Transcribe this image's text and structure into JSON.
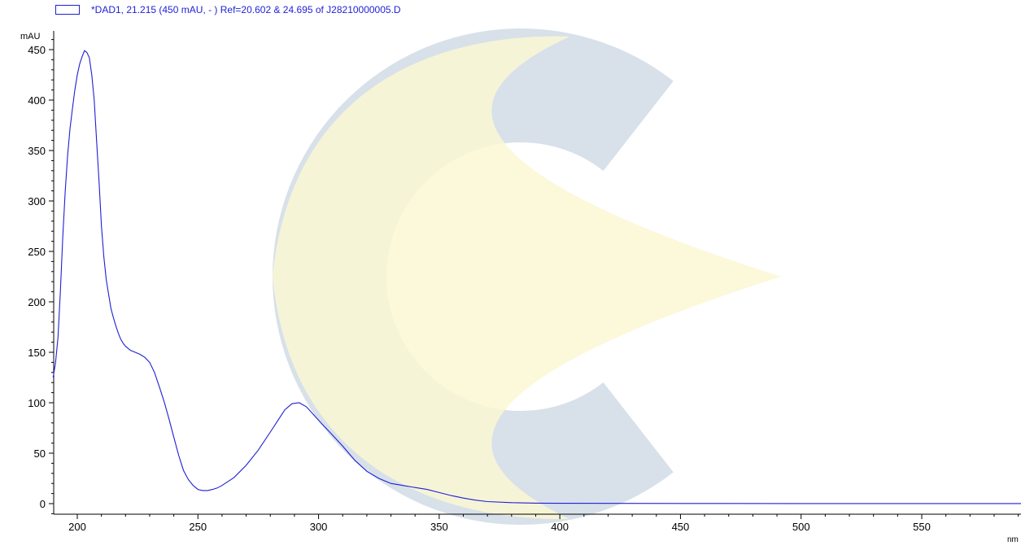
{
  "legend": {
    "label": "*DAD1, 21.215 (450 mAU, - ) Ref=20.602 & 24.695 of J28210000005.D",
    "color": "#1f1fd6"
  },
  "watermark": {
    "icon": "c-logo-watermark",
    "colors": [
      "#d8e1ea",
      "#fbf7d3"
    ]
  },
  "chart_data": {
    "type": "line",
    "ylabel": "mAU",
    "xlabel": "nm",
    "xlim": [
      190,
      600
    ],
    "ylim": [
      -10,
      462
    ],
    "x_ticks": [
      200,
      250,
      300,
      350,
      400,
      450,
      500,
      550
    ],
    "y_ticks": [
      0,
      50,
      100,
      150,
      200,
      250,
      300,
      350,
      400,
      450
    ],
    "grid": false,
    "legend_position": "top-left",
    "series": [
      {
        "color": "#1f1fd6",
        "points": [
          [
            190,
            125
          ],
          [
            191,
            140
          ],
          [
            192,
            165
          ],
          [
            193,
            210
          ],
          [
            194,
            265
          ],
          [
            195,
            310
          ],
          [
            196,
            345
          ],
          [
            197,
            372
          ],
          [
            198,
            392
          ],
          [
            199,
            410
          ],
          [
            200,
            425
          ],
          [
            201,
            436
          ],
          [
            202,
            443
          ],
          [
            203,
            449
          ],
          [
            204,
            447
          ],
          [
            205,
            442
          ],
          [
            206,
            425
          ],
          [
            207,
            400
          ],
          [
            208,
            360
          ],
          [
            209,
            320
          ],
          [
            210,
            275
          ],
          [
            211,
            245
          ],
          [
            212,
            222
          ],
          [
            213,
            207
          ],
          [
            214,
            193
          ],
          [
            215,
            184
          ],
          [
            216,
            176
          ],
          [
            217,
            169
          ],
          [
            218,
            163
          ],
          [
            219,
            159
          ],
          [
            220,
            156
          ],
          [
            222,
            152
          ],
          [
            224,
            150
          ],
          [
            226,
            148
          ],
          [
            228,
            145
          ],
          [
            230,
            140
          ],
          [
            232,
            130
          ],
          [
            234,
            116
          ],
          [
            236,
            101
          ],
          [
            238,
            84
          ],
          [
            240,
            66
          ],
          [
            242,
            48
          ],
          [
            244,
            33
          ],
          [
            246,
            24
          ],
          [
            248,
            18
          ],
          [
            250,
            14
          ],
          [
            252,
            13
          ],
          [
            254,
            13
          ],
          [
            256,
            14
          ],
          [
            258,
            15.5
          ],
          [
            260,
            18
          ],
          [
            265,
            26
          ],
          [
            270,
            38
          ],
          [
            275,
            53
          ],
          [
            280,
            71
          ],
          [
            283,
            82
          ],
          [
            286,
            93
          ],
          [
            289,
            99
          ],
          [
            292,
            100
          ],
          [
            295,
            96
          ],
          [
            298,
            88
          ],
          [
            301,
            80
          ],
          [
            305,
            70
          ],
          [
            310,
            57
          ],
          [
            315,
            43
          ],
          [
            320,
            32
          ],
          [
            325,
            25
          ],
          [
            330,
            20
          ],
          [
            335,
            18
          ],
          [
            340,
            16
          ],
          [
            345,
            14
          ],
          [
            350,
            11
          ],
          [
            355,
            8
          ],
          [
            360,
            5.5
          ],
          [
            365,
            3.5
          ],
          [
            370,
            2
          ],
          [
            380,
            1
          ],
          [
            390,
            0.5
          ],
          [
            400,
            0.3
          ],
          [
            450,
            0.2
          ],
          [
            500,
            0.1
          ],
          [
            550,
            0.1
          ],
          [
            600,
            0.1
          ]
        ]
      }
    ]
  }
}
